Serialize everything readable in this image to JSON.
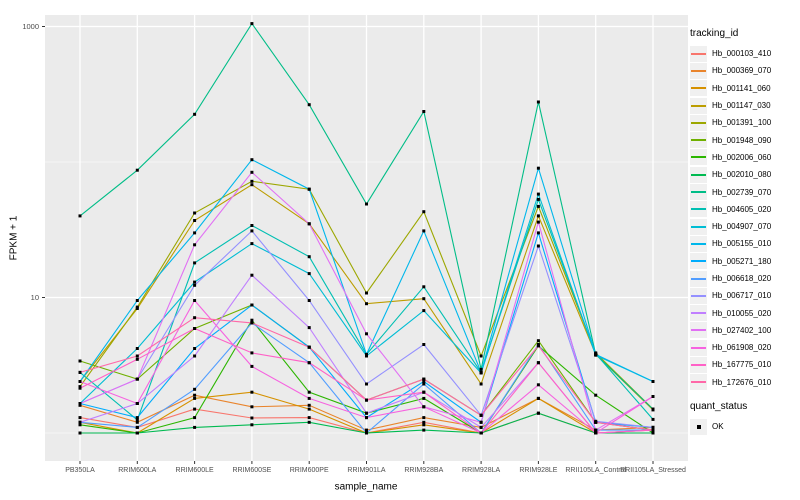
{
  "chart_data": {
    "type": "line",
    "title": "",
    "xlabel": "sample_name",
    "ylabel": "FPKM + 1",
    "yscale": "log10",
    "ytick_labels": [
      "10",
      "1000"
    ],
    "ytick_values": [
      10,
      1000
    ],
    "minor_grid_values": [
      1,
      100
    ],
    "ylim": [
      0.62,
      1300
    ],
    "grid": true,
    "panel_bg": "#EBEBEB",
    "grid_color": "#FFFFFF",
    "tick_color": "#333333",
    "tick_label_color": "#4D4D4D",
    "point_color": "#000000",
    "legend_position": "right",
    "legend_key_bg": "#F0F0F0",
    "categories": [
      "PB350LA",
      "RRIM600LA",
      "RRIM600LE",
      "RRIM600SE",
      "RRIM600PE",
      "RRIM901LA",
      "RRIM928BA",
      "RRIM928LA",
      "RRIM928LE",
      "RRII105LA_Control",
      "RRII105LA_Stressed"
    ],
    "legend": {
      "tracking_title": "tracking_id",
      "quant_title": "quant_status",
      "quant_label": "OK"
    },
    "series": [
      {
        "name": "Hb_000103_410",
        "color": "#F8766D",
        "values": [
          1.3,
          1.1,
          1.5,
          1.29,
          1.3,
          1.0,
          1.2,
          1.0,
          1.4,
          1.0,
          1.0
        ]
      },
      {
        "name": "Hb_000369_070",
        "color": "#E9842C",
        "values": [
          1.6,
          1.2,
          1.9,
          1.56,
          1.6,
          1.05,
          1.3,
          1.1,
          1.8,
          1.05,
          1.1
        ]
      },
      {
        "name": "Hb_001141_060",
        "color": "#D69100",
        "values": [
          1.2,
          1.0,
          1.8,
          2.0,
          1.5,
          1.0,
          1.15,
          1.0,
          1.8,
          1.0,
          1.05
        ]
      },
      {
        "name": "Hb_001147_030",
        "color": "#BC9D00",
        "values": [
          2.4,
          8.3,
          37.0,
          68.0,
          35.0,
          9.0,
          9.8,
          2.3,
          40.0,
          3.8,
          1.48
        ]
      },
      {
        "name": "Hb_001391_100",
        "color": "#9CA700",
        "values": [
          2.2,
          8.5,
          42.0,
          72.0,
          63.0,
          10.8,
          43.0,
          3.7,
          47.0,
          3.9,
          1.5
        ]
      },
      {
        "name": "Hb_001948_090",
        "color": "#6FB000",
        "values": [
          3.4,
          2.5,
          5.9,
          8.8,
          4.3,
          1.75,
          2.5,
          1.35,
          4.8,
          1.2,
          1.05
        ]
      },
      {
        "name": "Hb_002006_060",
        "color": "#2CB600",
        "values": [
          1.15,
          1.0,
          1.3,
          6.8,
          2.0,
          1.4,
          1.8,
          1.0,
          4.4,
          1.9,
          1.0
        ]
      },
      {
        "name": "Hb_002010_080",
        "color": "#00BA51",
        "values": [
          1.0,
          1.0,
          1.1,
          1.15,
          1.2,
          1.0,
          1.05,
          1.0,
          1.4,
          1.0,
          1.0
        ]
      },
      {
        "name": "Hb_002739_070",
        "color": "#00BD87",
        "values": [
          40.0,
          87.0,
          225,
          1050,
          265,
          49.0,
          236,
          2.95,
          277,
          3.8,
          1.5
        ]
      },
      {
        "name": "Hb_004605_020",
        "color": "#00BFB2",
        "values": [
          2.8,
          1.25,
          18.0,
          34.0,
          20.0,
          3.8,
          12.0,
          2.8,
          53.0,
          3.85,
          1.26
        ]
      },
      {
        "name": "Hb_004907_070",
        "color": "#00BDD4",
        "values": [
          1.65,
          4.2,
          13.0,
          25.0,
          15.0,
          3.7,
          8.0,
          2.77,
          58.0,
          3.75,
          2.4
        ]
      },
      {
        "name": "Hb_005155_010",
        "color": "#00B7EB",
        "values": [
          2.4,
          9.5,
          30.0,
          104,
          63.0,
          3.8,
          31.0,
          2.8,
          90.0,
          3.8,
          2.4
        ]
      },
      {
        "name": "Hb_005271_180",
        "color": "#00ACFC",
        "values": [
          1.65,
          1.3,
          4.2,
          8.8,
          4.3,
          1.3,
          2.4,
          1.2,
          30.0,
          1.2,
          1.1
        ]
      },
      {
        "name": "Hb_006618_020",
        "color": "#519DFF",
        "values": [
          1.2,
          1.1,
          2.1,
          6.5,
          3.3,
          1.0,
          2.3,
          1.0,
          4.5,
          1.05,
          1.05
        ]
      },
      {
        "name": "Hb_006717_010",
        "color": "#9490FF",
        "values": [
          1.65,
          2.5,
          12.3,
          31.0,
          9.5,
          2.3,
          4.5,
          1.35,
          24.0,
          1.22,
          1.1
        ]
      },
      {
        "name": "Hb_010055_020",
        "color": "#C07FFF",
        "values": [
          1.2,
          1.65,
          3.7,
          14.6,
          6.0,
          1.4,
          2.0,
          1.1,
          3.3,
          1.0,
          1.05
        ]
      },
      {
        "name": "Hb_027402_100",
        "color": "#E170F4",
        "values": [
          1.65,
          2.5,
          24.5,
          84.0,
          35.0,
          5.4,
          1.56,
          1.2,
          36.0,
          1.05,
          1.86
        ]
      },
      {
        "name": "Hb_061908_020",
        "color": "#F663E0",
        "values": [
          2.4,
          1.65,
          9.5,
          3.1,
          1.8,
          1.3,
          1.56,
          1.0,
          2.27,
          1.0,
          1.86
        ]
      },
      {
        "name": "Hb_167775_010",
        "color": "#FF61C7",
        "values": [
          2.14,
          3.5,
          5.9,
          3.9,
          3.3,
          1.75,
          2.0,
          1.0,
          3.3,
          1.0,
          1.05
        ]
      },
      {
        "name": "Hb_172676_010",
        "color": "#FF68A8",
        "values": [
          2.8,
          3.7,
          7.1,
          6.5,
          4.3,
          1.75,
          2.5,
          1.35,
          4.4,
          1.2,
          1.05
        ]
      }
    ]
  }
}
